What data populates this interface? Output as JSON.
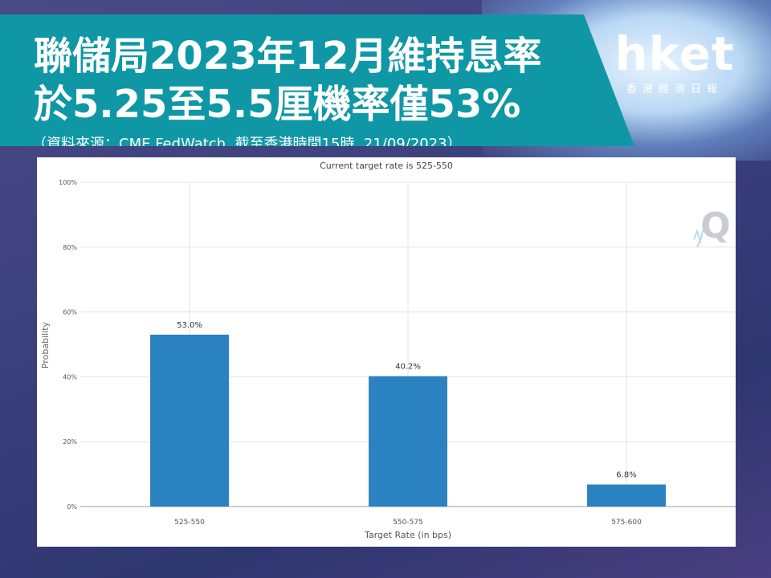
{
  "header": {
    "headline_line1": "聯儲局2023年12月維持息率",
    "headline_line2": "於5.25至5.5厘機率僅53%",
    "source": "（資料來源：CME FedWatch, 截至香港時間15時, 21/09/2023）"
  },
  "logo": {
    "wordmark": "hket",
    "subtitle": "香港經濟日報"
  },
  "chart_data": {
    "type": "bar",
    "title": "Current target rate is 525-550",
    "xlabel": "Target Rate (in bps)",
    "ylabel": "Probability",
    "categories": [
      "525-550",
      "550-575",
      "575-600"
    ],
    "values": [
      53.0,
      40.2,
      6.8
    ],
    "data_labels": [
      "53.0%",
      "40.2%",
      "6.8%"
    ],
    "ylim": [
      0,
      100
    ],
    "yticks": [
      "0%",
      "20%",
      "40%",
      "60%",
      "80%",
      "100%"
    ],
    "ytick_values": [
      0,
      20,
      40,
      60,
      80,
      100
    ],
    "grid": true,
    "bar_color": "#2b82c0",
    "watermark": "Q"
  }
}
